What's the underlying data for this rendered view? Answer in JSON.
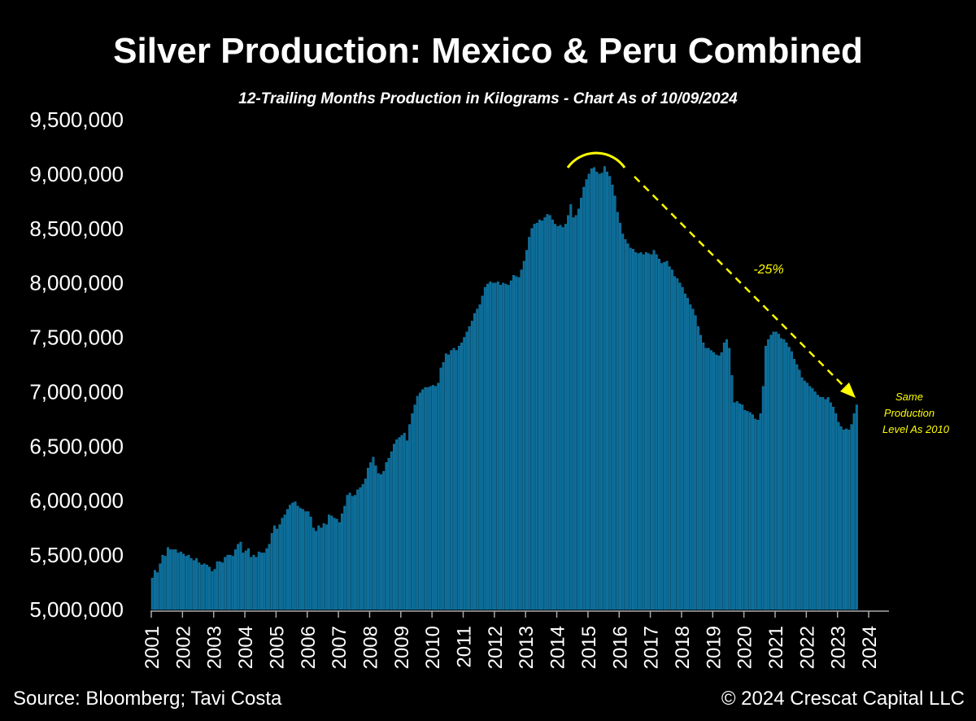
{
  "chart_data": {
    "type": "bar",
    "title": "Silver Production: Mexico & Peru Combined",
    "subtitle": "12-Trailing Months Production in Kilograms - Chart As of 10/09/2024",
    "xlabel": "",
    "ylabel": "",
    "ylim": [
      5000000,
      9500000
    ],
    "yticks": [
      "5,000,000",
      "5,500,000",
      "6,000,000",
      "6,500,000",
      "7,000,000",
      "7,500,000",
      "8,000,000",
      "8,500,000",
      "9,000,000",
      "9,500,000"
    ],
    "xticks": [
      "2001",
      "2002",
      "2003",
      "2004",
      "2005",
      "2006",
      "2007",
      "2008",
      "2009",
      "2010",
      "2011",
      "2012",
      "2013",
      "2014",
      "2015",
      "2016",
      "2017",
      "2018",
      "2019",
      "2020",
      "2021",
      "2022",
      "2023",
      "2024"
    ],
    "frequency": "monthly",
    "start": "2001-01",
    "grid": false,
    "bar_color": "#0b6b96",
    "values": [
      5290000.0,
      5360000.0,
      5340000.0,
      5420000.0,
      5500000.0,
      5490000.0,
      5570000.0,
      5550000.0,
      5550000.0,
      5550000.0,
      5520000.0,
      5530000.0,
      5510000.0,
      5490000.0,
      5500000.0,
      5470000.0,
      5450000.0,
      5470000.0,
      5430000.0,
      5410000.0,
      5420000.0,
      5410000.0,
      5390000.0,
      5350000.0,
      5370000.0,
      5440000.0,
      5440000.0,
      5430000.0,
      5480000.0,
      5500000.0,
      5500000.0,
      5490000.0,
      5550000.0,
      5600000.0,
      5620000.0,
      5520000.0,
      5540000.0,
      5560000.0,
      5480000.0,
      5500000.0,
      5480000.0,
      5530000.0,
      5520000.0,
      5520000.0,
      5560000.0,
      5600000.0,
      5700000.0,
      5770000.0,
      5740000.0,
      5780000.0,
      5840000.0,
      5870000.0,
      5920000.0,
      5960000.0,
      5980000.0,
      5990000.0,
      5950000.0,
      5930000.0,
      5920000.0,
      5900000.0,
      5900000.0,
      5850000.0,
      5750000.0,
      5720000.0,
      5770000.0,
      5750000.0,
      5790000.0,
      5780000.0,
      5870000.0,
      5860000.0,
      5840000.0,
      5830000.0,
      5800000.0,
      5880000.0,
      5950000.0,
      6050000.0,
      6070000.0,
      6040000.0,
      6050000.0,
      6100000.0,
      6120000.0,
      6150000.0,
      6200000.0,
      6300000.0,
      6350000.0,
      6400000.0,
      6320000.0,
      6250000.0,
      6240000.0,
      6270000.0,
      6350000.0,
      6390000.0,
      6450000.0,
      6520000.0,
      6560000.0,
      6580000.0,
      6600000.0,
      6620000.0,
      6550000.0,
      6700000.0,
      6800000.0,
      6880000.0,
      6960000.0,
      6990000.0,
      7020000.0,
      7040000.0,
      7040000.0,
      7050000.0,
      7060000.0,
      7050000.0,
      7080000.0,
      7220000.0,
      7270000.0,
      7350000.0,
      7340000.0,
      7380000.0,
      7400000.0,
      7380000.0,
      7420000.0,
      7450000.0,
      7500000.0,
      7550000.0,
      7600000.0,
      7650000.0,
      7720000.0,
      7760000.0,
      7800000.0,
      7880000.0,
      7960000.0,
      7990000.0,
      8010000.0,
      8000000.0,
      8000000.0,
      8010000.0,
      7980000.0,
      8000000.0,
      7990000.0,
      7980000.0,
      8020000.0,
      8070000.0,
      8060000.0,
      8050000.0,
      8120000.0,
      8200000.0,
      8300000.0,
      8420000.0,
      8500000.0,
      8540000.0,
      8550000.0,
      8580000.0,
      8570000.0,
      8600000.0,
      8630000.0,
      8620000.0,
      8580000.0,
      8540000.0,
      8520000.0,
      8530000.0,
      8510000.0,
      8540000.0,
      8620000.0,
      8720000.0,
      8600000.0,
      8620000.0,
      8680000.0,
      8780000.0,
      8880000.0,
      8950000.0,
      9000000.0,
      9050000.0,
      9060000.0,
      9020000.0,
      9000000.0,
      9010000.0,
      9070000.0,
      9020000.0,
      8980000.0,
      8900000.0,
      8800000.0,
      8650000.0,
      8550000.0,
      8450000.0,
      8400000.0,
      8360000.0,
      8320000.0,
      8310000.0,
      8280000.0,
      8270000.0,
      8280000.0,
      8260000.0,
      8280000.0,
      8270000.0,
      8260000.0,
      8300000.0,
      8260000.0,
      8220000.0,
      8180000.0,
      8190000.0,
      8200000.0,
      8150000.0,
      8120000.0,
      8060000.0,
      8040000.0,
      8000000.0,
      7960000.0,
      7900000.0,
      7860000.0,
      7800000.0,
      7760000.0,
      7700000.0,
      7600000.0,
      7520000.0,
      7450000.0,
      7400000.0,
      7400000.0,
      7380000.0,
      7360000.0,
      7340000.0,
      7330000.0,
      7360000.0,
      7450000.0,
      7480000.0,
      7400000.0,
      7150000.0,
      6900000.0,
      6910000.0,
      6890000.0,
      6880000.0,
      6830000.0,
      6820000.0,
      6810000.0,
      6790000.0,
      6750000.0,
      6740000.0,
      6800000.0,
      7050000.0,
      7420000.0,
      7480000.0,
      7520000.0,
      7550000.0,
      7550000.0,
      7530000.0,
      7490000.0,
      7480000.0,
      7450000.0,
      7410000.0,
      7370000.0,
      7300000.0,
      7250000.0,
      7200000.0,
      7130000.0,
      7100000.0,
      7080000.0,
      7050000.0,
      7030000.0,
      7000000.0,
      6970000.0,
      6950000.0,
      6950000.0,
      6930000.0,
      6950000.0,
      6900000.0,
      6860000.0,
      6800000.0,
      6720000.0,
      6680000.0,
      6650000.0,
      6660000.0,
      6650000.0,
      6700000.0,
      6800000.0,
      6880000.0
    ],
    "annotations": {
      "decline_label": "-25%",
      "end_note": [
        "Same",
        "Production",
        "Level As 2010"
      ],
      "annotation_color": "#ffff00"
    }
  },
  "footer": {
    "source": "Source: Bloomberg; Tavi Costa",
    "copyright": "© 2024 Crescat Capital LLC"
  }
}
